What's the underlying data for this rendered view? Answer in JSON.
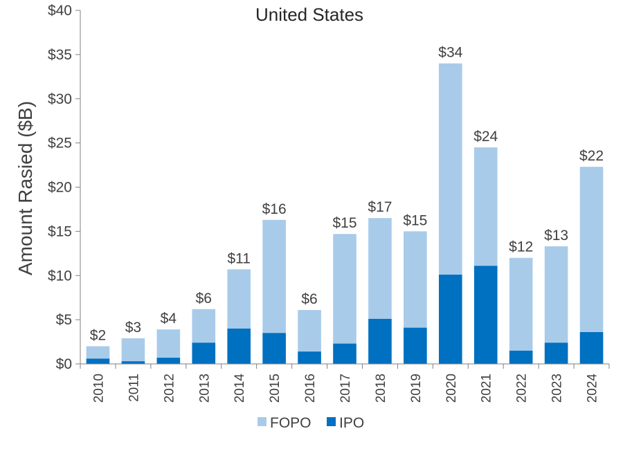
{
  "chart_data": {
    "type": "bar",
    "stacked": true,
    "title": "United States",
    "xlabel": "",
    "ylabel": "Amount Rasied ($B)",
    "ylim": [
      0,
      40
    ],
    "yticks": [
      "$0",
      "$5",
      "$10",
      "$15",
      "$20",
      "$25",
      "$30",
      "$35",
      "$40"
    ],
    "ytick_values": [
      0,
      5,
      10,
      15,
      20,
      25,
      30,
      35,
      40
    ],
    "grid": false,
    "legend": "bottom",
    "categories": [
      "2010",
      "2011",
      "2012",
      "2013",
      "2014",
      "2015",
      "2016",
      "2017",
      "2018",
      "2019",
      "2020",
      "2021",
      "2022",
      "2023",
      "2024"
    ],
    "series": [
      {
        "name": "IPO",
        "color": "#0070C0",
        "values": [
          0.6,
          0.3,
          0.7,
          2.4,
          4.0,
          3.5,
          1.4,
          2.3,
          5.1,
          4.1,
          10.1,
          11.1,
          1.5,
          2.4,
          3.6
        ]
      },
      {
        "name": "FOPO",
        "color": "#A9CBEA",
        "values": [
          1.4,
          2.6,
          3.2,
          3.8,
          6.7,
          12.8,
          4.7,
          12.4,
          11.4,
          10.9,
          23.9,
          13.4,
          10.5,
          10.9,
          18.7
        ]
      }
    ],
    "totals_labels": [
      "$2",
      "$3",
      "$4",
      "$6",
      "$11",
      "$16",
      "$6",
      "$15",
      "$17",
      "$15",
      "$34",
      "$24",
      "$12",
      "$13",
      "$22"
    ],
    "legend_order": [
      "FOPO",
      "IPO"
    ]
  }
}
